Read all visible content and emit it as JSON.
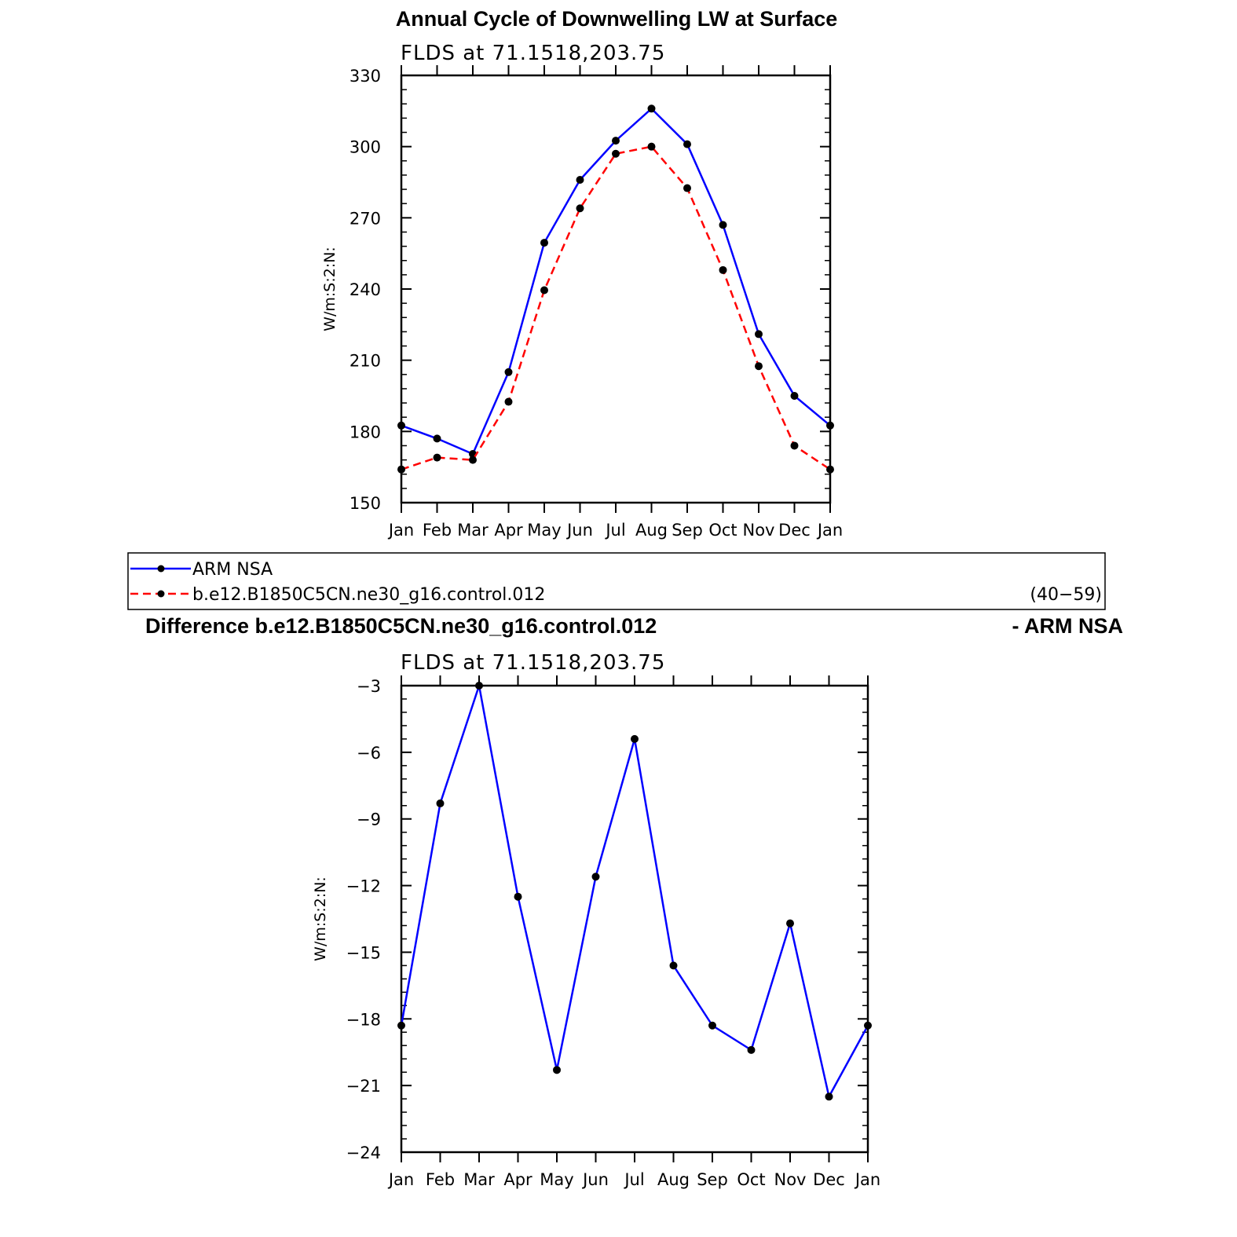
{
  "colors": {
    "series_obs": "#0000ff",
    "series_model": "#ff0000",
    "diff_line": "#0000ff",
    "marker": "#000000"
  },
  "legend": {
    "entries": [
      {
        "label": "ARM NSA",
        "color": "#0000ff",
        "style": "solid"
      },
      {
        "label": "b.e12.B1850C5CN.ne30_g16.control.012",
        "color": "#ff0000",
        "style": "dashed"
      }
    ],
    "years": "(40−59)"
  },
  "diff_title": {
    "left": "Difference b.e12.B1850C5CN.ne30_g16.control.012",
    "right": "- ARM NSA"
  },
  "chart_data": [
    {
      "type": "line",
      "title": "Annual Cycle of Downwelling LW at Surface",
      "subtitle": "FLDS at 71.1518,203.75",
      "xlabel": "",
      "ylabel": "W/m:S:2:N:",
      "categories": [
        "Jan",
        "Feb",
        "Mar",
        "Apr",
        "May",
        "Jun",
        "Jul",
        "Aug",
        "Sep",
        "Oct",
        "Nov",
        "Dec",
        "Jan"
      ],
      "ylim": [
        150,
        330
      ],
      "yticks": [
        "150",
        "180",
        "210",
        "240",
        "270",
        "300",
        "330"
      ],
      "legend_position": "below",
      "series": [
        {
          "name": "ARM NSA",
          "values": [
            182.5,
            177,
            170.5,
            205,
            259.5,
            286,
            302.5,
            316,
            301,
            267,
            221,
            195,
            182.5
          ]
        },
        {
          "name": "b.e12.B1850C5CN.ne30_g16.control.012",
          "values": [
            164,
            169,
            168,
            192.5,
            239.5,
            274,
            297,
            300,
            282.5,
            248,
            207.5,
            174,
            164
          ]
        }
      ]
    },
    {
      "type": "line",
      "title": "",
      "subtitle": "FLDS at 71.1518,203.75",
      "xlabel": "",
      "ylabel": "W/m:S:2:N:",
      "categories": [
        "Jan",
        "Feb",
        "Mar",
        "Apr",
        "May",
        "Jun",
        "Jul",
        "Aug",
        "Sep",
        "Oct",
        "Nov",
        "Dec",
        "Jan"
      ],
      "ylim": [
        -24,
        -3
      ],
      "yticks": [
        "−24",
        "−21",
        "−18",
        "−15",
        "−12",
        "−9",
        "−6",
        "−3"
      ],
      "series": [
        {
          "values": [
            -18.3,
            -8.3,
            -3.0,
            -12.5,
            -20.3,
            -11.6,
            -5.4,
            -15.6,
            -18.3,
            -19.4,
            -13.7,
            -21.5,
            -18.3
          ]
        }
      ]
    }
  ]
}
